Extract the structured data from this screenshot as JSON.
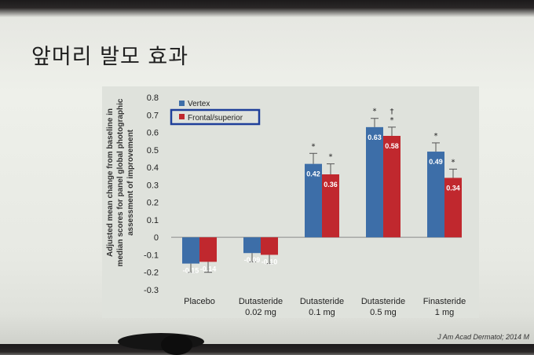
{
  "slide": {
    "title": "앞머리 발모 효과",
    "citation": "J Am Acad Dermatol; 2014 M"
  },
  "chart_data": {
    "type": "bar",
    "ylabel_lines": [
      "Adjusted mean change  from baseline in",
      "median scores for panel global photographic",
      "assessment of improvement"
    ],
    "ylim": [
      -0.3,
      0.8
    ],
    "yticks": [
      "0.8",
      "0.7",
      "0.6",
      "0.5",
      "0.4",
      "0.3",
      "0.2",
      "0.1",
      "0",
      "-0.1",
      "-0.2",
      "-0.3"
    ],
    "categories": [
      [
        "Placebo"
      ],
      [
        "Dutasteride",
        "0.02 mg"
      ],
      [
        "Dutasteride",
        "0.1 mg"
      ],
      [
        "Dutasteride",
        "0.5 mg"
      ],
      [
        "Finasteride",
        "1 mg"
      ]
    ],
    "legend_position": "top-left",
    "series": [
      {
        "name": "Vertex",
        "color": "#3d6ea8",
        "values": [
          -0.15,
          -0.09,
          0.42,
          0.63,
          0.49
        ],
        "labels": [
          "-0.15",
          "-0.09",
          "0.42",
          "0.63",
          "0.49"
        ],
        "errors": [
          0.05,
          0.05,
          0.06,
          0.05,
          0.05
        ],
        "marks": [
          "",
          "",
          "*",
          "*",
          "*"
        ]
      },
      {
        "name": "Frontal/superior",
        "color": "#c0282e",
        "values": [
          -0.14,
          -0.1,
          0.36,
          0.58,
          0.34
        ],
        "labels": [
          "-0.14",
          "-0.10",
          "0.36",
          "0.58",
          "0.34"
        ],
        "errors": [
          0.06,
          0.05,
          0.06,
          0.05,
          0.05
        ],
        "marks": [
          "",
          "",
          "*",
          "†\n*",
          "*"
        ]
      }
    ]
  }
}
